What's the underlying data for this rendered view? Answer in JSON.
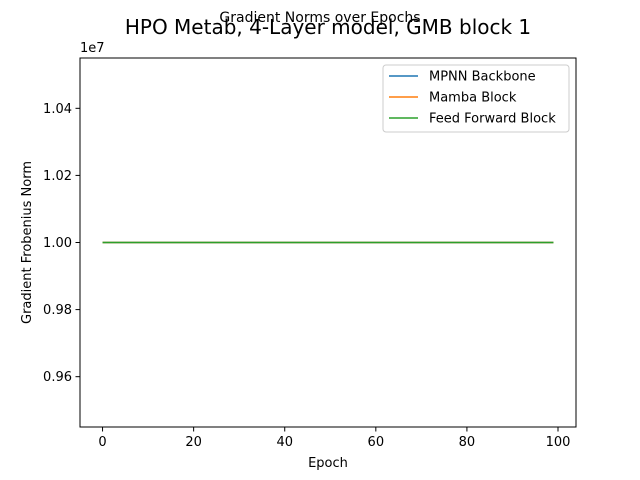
{
  "figure": {
    "suptitle": "HPO Metab, 4-Layer model, GMB block 1",
    "title": "Gradient Norms over Epochs"
  },
  "chart_data": {
    "type": "line",
    "title": "Gradient Norms over Epochs",
    "suptitle": "HPO Metab, 4-Layer model, GMB block 1",
    "xlabel": "Epoch",
    "ylabel": "Gradient Frobenius Norm",
    "y_offset_label": "1e7",
    "xlim": [
      -4.95,
      103.95
    ],
    "ylim": [
      0.945,
      1.055
    ],
    "xticks": [
      0,
      20,
      40,
      60,
      80,
      100
    ],
    "xtick_labels": [
      "0",
      "20",
      "40",
      "60",
      "80",
      "100"
    ],
    "yticks": [
      0.96,
      0.98,
      1.0,
      1.02,
      1.04
    ],
    "ytick_labels": [
      "0.96",
      "0.98",
      "1.00",
      "1.02",
      "1.04"
    ],
    "grid": false,
    "legend_position": "top-right",
    "x": [
      0,
      99
    ],
    "series": [
      {
        "name": "MPNN Backbone",
        "color": "#1f77b4",
        "values": [
          1.0,
          1.0
        ]
      },
      {
        "name": "Mamba Block",
        "color": "#ff7f0e",
        "values": [
          1.0,
          1.0
        ]
      },
      {
        "name": "Feed Forward Block",
        "color": "#2ca02c",
        "values": [
          1.0,
          1.0
        ]
      }
    ]
  }
}
